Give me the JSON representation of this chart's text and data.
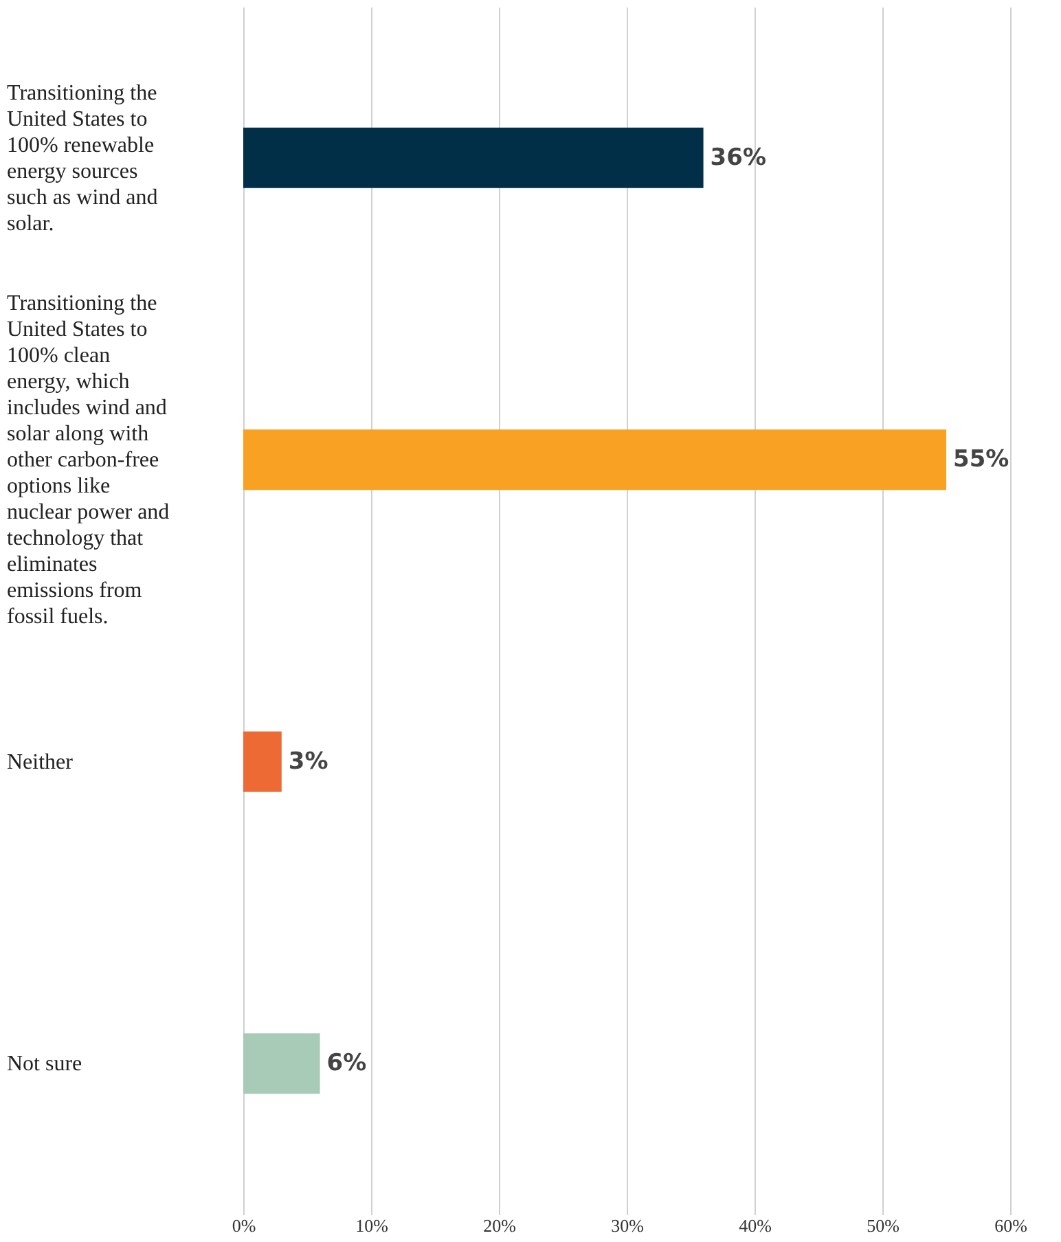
{
  "chart_data": {
    "type": "bar",
    "orientation": "horizontal",
    "categories": [
      "Transitioning the United States to 100% renewable energy sources such as wind and solar.",
      "Transitioning the United States to 100% clean energy, which includes wind and solar along with other carbon-free options like nuclear power and technology that eliminates emissions from fossil fuels.",
      "Neither",
      "Not sure"
    ],
    "values": [
      36,
      55,
      3,
      6
    ],
    "colors": [
      "#002f47",
      "#f9a123",
      "#ee6a35",
      "#a8cbb7"
    ],
    "value_labels": [
      "36%",
      "55%",
      "3%",
      "6%"
    ],
    "xlim": [
      0,
      60
    ],
    "xticks": [
      {
        "value": 0,
        "label": "0%"
      },
      {
        "value": 10,
        "label": "10%"
      },
      {
        "value": 20,
        "label": "20%"
      },
      {
        "value": 30,
        "label": "30%"
      },
      {
        "value": 40,
        "label": "40%"
      },
      {
        "value": 50,
        "label": "50%"
      },
      {
        "value": 60,
        "label": "60%"
      }
    ],
    "grid": "x"
  }
}
